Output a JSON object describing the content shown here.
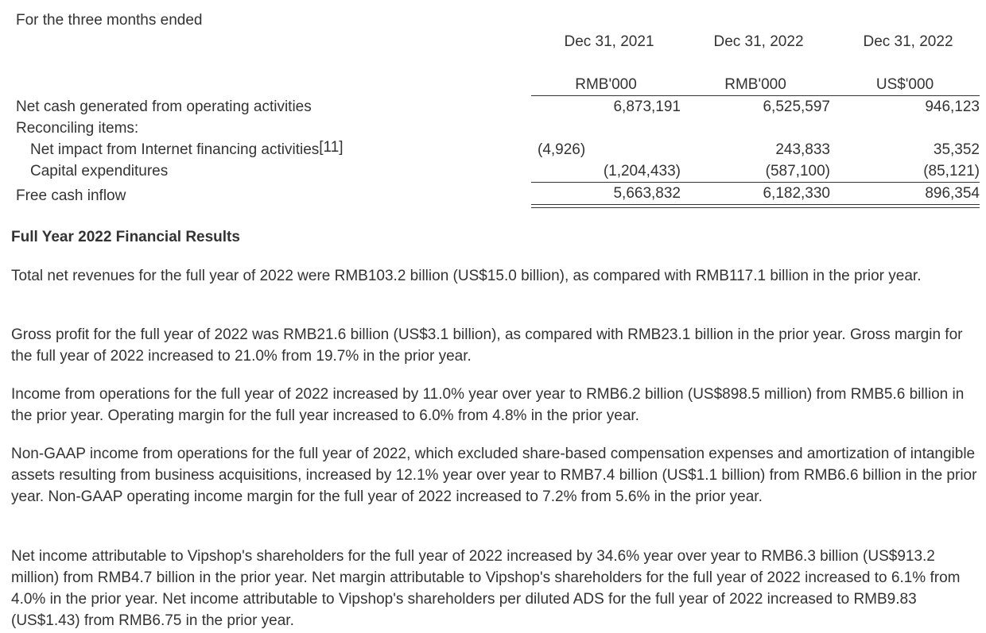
{
  "table": {
    "period_label": "For the three months ended",
    "columns": [
      {
        "date": "Dec 31, 2021",
        "unit": "RMB'000"
      },
      {
        "date": "Dec 31, 2022",
        "unit": "RMB'000"
      },
      {
        "date": "Dec 31, 2022",
        "unit": "US$'000"
      }
    ],
    "rows": {
      "operating": {
        "label": "Net cash generated from operating activities",
        "values": [
          "6,873,191",
          "6,525,597",
          "946,123"
        ]
      },
      "reconciling": {
        "label": "Reconciling items:"
      },
      "internet": {
        "label": "Net impact from Internet financing activities",
        "note": "[11]",
        "values": [
          "(4,926)",
          "243,833",
          "35,352"
        ]
      },
      "capex": {
        "label": "Capital expenditures",
        "values": [
          "(1,204,433)",
          "(587,100)",
          "(85,121)"
        ]
      },
      "free_cash": {
        "label": "Free cash inflow",
        "values": [
          "5,663,832",
          "6,182,330",
          "896,354"
        ]
      }
    }
  },
  "section": {
    "heading": "Full Year 2022 Financial Results",
    "paragraphs": [
      "Total net revenues for the full year of 2022 were RMB103.2 billion (US$15.0 billion), as compared with RMB117.1 billion in the prior year.",
      "Gross profit for the full year of 2022 was RMB21.6 billion (US$3.1 billion), as compared with RMB23.1 billion in the prior year. Gross margin for the full year of 2022 increased to 21.0% from 19.7% in the prior year.",
      "Income from operations for the full year of 2022 increased by 11.0% year over year to RMB6.2 billion (US$898.5 million) from RMB5.6 billion in the prior year. Operating margin for the full year increased to 6.0% from 4.8% in the prior year.",
      "Non-GAAP income from operations for the full year of 2022, which excluded share-based compensation expenses and amortization of intangible assets resulting from business acquisitions, increased by 12.1% year over year to RMB7.4 billion (US$1.1 billion) from RMB6.6 billion in the prior year. Non-GAAP operating income margin for the full year of 2022 increased to 7.2% from 5.6% in the prior year.",
      "Net income attributable to Vipshop's shareholders for the full year of 2022 increased by 34.6% year over year to RMB6.3 billion (US$913.2 million) from RMB4.7 billion in the prior year. Net margin attributable to Vipshop's shareholders for the full year of 2022 increased to 6.1% from 4.0% in the prior year. Net income attributable to Vipshop's shareholders per diluted ADS for the full year of 2022 increased to RMB9.83 (US$1.43) from RMB6.75 in the prior year."
    ]
  }
}
